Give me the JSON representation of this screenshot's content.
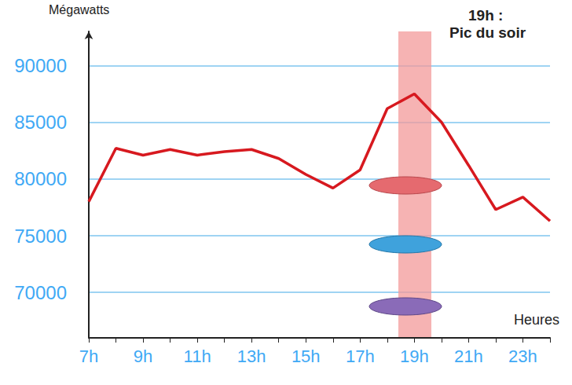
{
  "chart_data": {
    "type": "line",
    "y_label": "Mégawatts",
    "x_label": "Heures",
    "annotations": [
      "19h :",
      "Pic du soir"
    ],
    "highlight": "19h",
    "categories": [
      "7h",
      null,
      "9h",
      null,
      "11h",
      null,
      "13h",
      null,
      "15h",
      null,
      "17h",
      null,
      "19h",
      null,
      "21h",
      null,
      "23h",
      null
    ],
    "values": [
      78000,
      82700,
      82100,
      82600,
      82100,
      82400,
      82600,
      81800,
      80400,
      79200,
      80800,
      86200,
      87500,
      85000,
      81200,
      77300,
      78400,
      76300
    ],
    "color": "#d7191f",
    "ylim": [
      66000,
      93000
    ],
    "yticks": [
      70000,
      75000,
      80000,
      85000,
      90000
    ],
    "grid": true
  }
}
